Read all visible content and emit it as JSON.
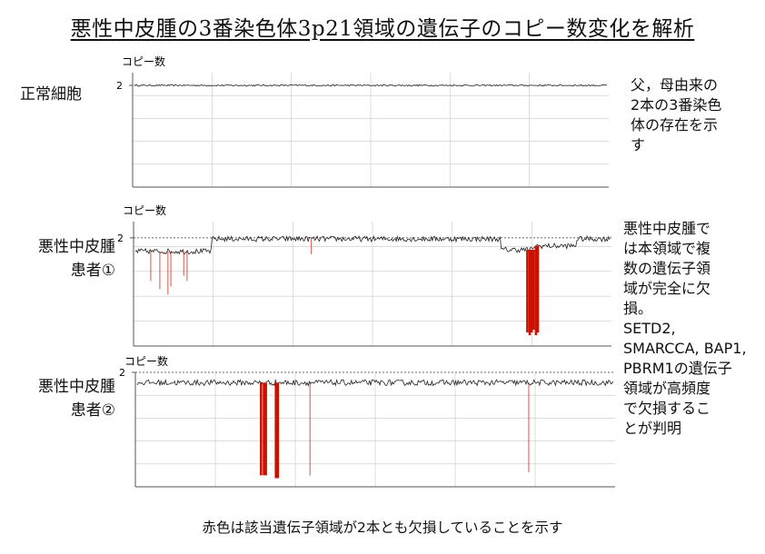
{
  "title": "悪性中皮腫の3番染色体3p21領域の遺伝子のコピー数変化を解析",
  "footer": "赤色は該当遺伝子領域が2本とも欠損していることを示す",
  "rows": [
    {
      "label_lines": [
        "正常細胞"
      ]
    },
    {
      "label_lines": [
        "悪性中皮腫",
        "患者①"
      ]
    },
    {
      "label_lines": [
        "悪性中皮腫",
        "患者②"
      ]
    }
  ],
  "side_notes": {
    "normal": [
      "父，母由来の",
      "2本の3番染色",
      "体の存在を示",
      "す"
    ],
    "tumor": [
      "悪性中皮腫で",
      "は本領域で複",
      "数の遺伝子領",
      "域が完全に欠",
      "損。",
      "SETD2,",
      "SMARCCA, BAP1,",
      "PBRM1の遺伝子",
      "領域が高頻度",
      "で欠損するこ",
      "とが判明"
    ]
  },
  "colors": {
    "trace": "#222222",
    "deletion": "#cc1100",
    "grid": "#c8c8c8",
    "axis": "#555555"
  },
  "chart_data": [
    {
      "type": "line",
      "title": "",
      "ylabel": "コピー数",
      "ytick_label": "2",
      "series": [
        {
          "name": "",
          "baseline": 2.0,
          "segments": [
            [
              0,
              1,
              2.0
            ]
          ]
        }
      ],
      "deletions": []
    },
    {
      "type": "line",
      "title": "",
      "ylabel": "コピー数",
      "ytick_label": "2",
      "series": [
        {
          "name": "",
          "segments": [
            [
              0,
              0.16,
              1.75
            ],
            [
              0.16,
              0.77,
              1.98
            ],
            [
              0.77,
              0.84,
              1.78
            ],
            [
              0.84,
              0.93,
              1.85
            ],
            [
              0.93,
              1,
              1.98
            ]
          ]
        }
      ],
      "deletions": [
        {
          "pos": 0.036,
          "to": 1.2,
          "strong": false
        },
        {
          "pos": 0.055,
          "to": 1.05,
          "strong": false
        },
        {
          "pos": 0.072,
          "to": 0.95,
          "strong": false
        },
        {
          "pos": 0.078,
          "to": 1.1,
          "strong": false
        },
        {
          "pos": 0.105,
          "to": 1.3,
          "strong": false
        },
        {
          "pos": 0.112,
          "to": 1.2,
          "strong": false
        },
        {
          "pos": 0.372,
          "to": 1.7,
          "strong": false
        },
        {
          "pos": 0.824,
          "to": 0.25,
          "strong": true
        },
        {
          "pos": 0.829,
          "to": 0.2,
          "strong": true
        },
        {
          "pos": 0.833,
          "to": 0.25,
          "strong": true
        },
        {
          "pos": 0.837,
          "to": 0.3,
          "strong": true
        },
        {
          "pos": 0.842,
          "to": 0.2,
          "strong": true
        },
        {
          "pos": 0.846,
          "to": 0.25,
          "strong": true
        }
      ]
    },
    {
      "type": "line",
      "title": "",
      "ylabel": "コピー数",
      "ytick_label": "2",
      "series": [
        {
          "name": "",
          "segments": [
            [
              0,
              1,
              1.82
            ]
          ]
        }
      ],
      "deletions": [
        {
          "pos": 0.262,
          "to": 0.2,
          "strong": true
        },
        {
          "pos": 0.268,
          "to": 0.2,
          "strong": true
        },
        {
          "pos": 0.272,
          "to": 0.2,
          "strong": true
        },
        {
          "pos": 0.293,
          "to": 0.15,
          "strong": true
        },
        {
          "pos": 0.297,
          "to": 0.15,
          "strong": true
        },
        {
          "pos": 0.364,
          "to": 0.2,
          "strong": false
        },
        {
          "pos": 0.82,
          "to": 0.25,
          "strong": false
        }
      ]
    }
  ]
}
